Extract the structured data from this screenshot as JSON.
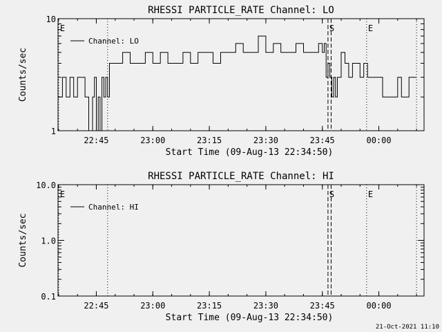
{
  "colors": {
    "background": "#f0f0f0",
    "foreground": "#000000"
  },
  "footer": {
    "timestamp": "21-Oct-2021 11:10"
  },
  "chart_data": [
    {
      "type": "line",
      "title": "RHESSI PARTICLE_RATE Channel: LO",
      "xlabel": "Start Time (09-Aug-13 22:34:50)",
      "ylabel": "Counts/sec",
      "y_scale": "log",
      "ylim": [
        1,
        10
      ],
      "xlim": [
        "22:34:50",
        "00:12:00"
      ],
      "x_ticks": [
        "22:45",
        "23:00",
        "23:15",
        "23:30",
        "23:45",
        "00:00"
      ],
      "y_ticks": [
        "1",
        "10"
      ],
      "legend": {
        "position": "top-left",
        "entries": [
          "Channel: LO"
        ]
      },
      "event_lines": [
        {
          "time": "22:35:00",
          "style": "dotted",
          "label": "E"
        },
        {
          "time": "22:48:00",
          "style": "dotted",
          "label": ""
        },
        {
          "time": "23:46:30",
          "style": "dashed",
          "label": "S"
        },
        {
          "time": "23:47:20",
          "style": "dashed",
          "label": ""
        },
        {
          "time": "23:56:45",
          "style": "dotted",
          "label": "E"
        },
        {
          "time": "00:10:00",
          "style": "dotted",
          "label": ""
        }
      ],
      "series": [
        {
          "name": "Channel: LO",
          "x": [
            "22:35:00",
            "22:36:00",
            "22:37:00",
            "22:38:00",
            "22:39:00",
            "22:40:00",
            "22:41:00",
            "22:42:00",
            "22:43:00",
            "22:44:00",
            "22:44:30",
            "22:45:00",
            "22:45:30",
            "22:46:00",
            "22:46:30",
            "22:47:00",
            "22:47:30",
            "22:48:00",
            "22:48:30",
            "22:50:00",
            "22:52:00",
            "22:54:00",
            "22:56:00",
            "22:58:00",
            "23:00:00",
            "23:02:00",
            "23:04:00",
            "23:06:00",
            "23:08:00",
            "23:10:00",
            "23:12:00",
            "23:14:00",
            "23:16:00",
            "23:18:00",
            "23:20:00",
            "23:22:00",
            "23:24:00",
            "23:26:00",
            "23:28:00",
            "23:30:00",
            "23:32:00",
            "23:34:00",
            "23:36:00",
            "23:38:00",
            "23:40:00",
            "23:42:00",
            "23:44:00",
            "23:45:00",
            "23:45:30",
            "23:46:00",
            "23:46:30",
            "23:47:00",
            "23:47:30",
            "23:48:00",
            "23:48:30",
            "23:49:00",
            "23:50:00",
            "23:51:00",
            "23:52:00",
            "23:53:00",
            "23:54:00",
            "23:55:00",
            "23:56:00",
            "23:57:00",
            "23:58:00",
            "23:59:00",
            "00:00:00",
            "00:01:00",
            "00:02:00",
            "00:03:00",
            "00:04:00",
            "00:05:00",
            "00:06:00",
            "00:07:00",
            "00:08:00",
            "00:09:00"
          ],
          "values": [
            2,
            3,
            2,
            3,
            2,
            3,
            3,
            2,
            1,
            2,
            3,
            1,
            2,
            1,
            3,
            2,
            3,
            2,
            4,
            4,
            5,
            4,
            4,
            5,
            4,
            5,
            4,
            4,
            5,
            4,
            5,
            5,
            4,
            5,
            5,
            6,
            5,
            5,
            7,
            5,
            6,
            5,
            5,
            6,
            5,
            5,
            6,
            5,
            6,
            3,
            4,
            3,
            2,
            3,
            2,
            3,
            5,
            4,
            3,
            4,
            4,
            3,
            4,
            3,
            3,
            3,
            3,
            2,
            2,
            2,
            2,
            3,
            2,
            2,
            3,
            3
          ]
        }
      ]
    },
    {
      "type": "line",
      "title": "RHESSI PARTICLE_RATE Channel: HI",
      "xlabel": "Start Time (09-Aug-13 22:34:50)",
      "ylabel": "Counts/sec",
      "y_scale": "log",
      "ylim": [
        0.1,
        10
      ],
      "xlim": [
        "22:34:50",
        "00:12:00"
      ],
      "x_ticks": [
        "22:45",
        "23:00",
        "23:15",
        "23:30",
        "23:45",
        "00:00"
      ],
      "y_ticks": [
        "0.1",
        "1.0",
        "10.0"
      ],
      "legend": {
        "position": "top-left",
        "entries": [
          "Channel: HI"
        ]
      },
      "event_lines": [
        {
          "time": "22:35:00",
          "style": "dotted",
          "label": "E"
        },
        {
          "time": "22:48:00",
          "style": "dotted",
          "label": ""
        },
        {
          "time": "23:46:30",
          "style": "dashed",
          "label": "S"
        },
        {
          "time": "23:47:20",
          "style": "dashed",
          "label": ""
        },
        {
          "time": "23:56:45",
          "style": "dotted",
          "label": "E"
        },
        {
          "time": "00:10:00",
          "style": "dotted",
          "label": ""
        }
      ],
      "series": [
        {
          "name": "Channel: HI",
          "x": [],
          "values": []
        }
      ]
    }
  ]
}
